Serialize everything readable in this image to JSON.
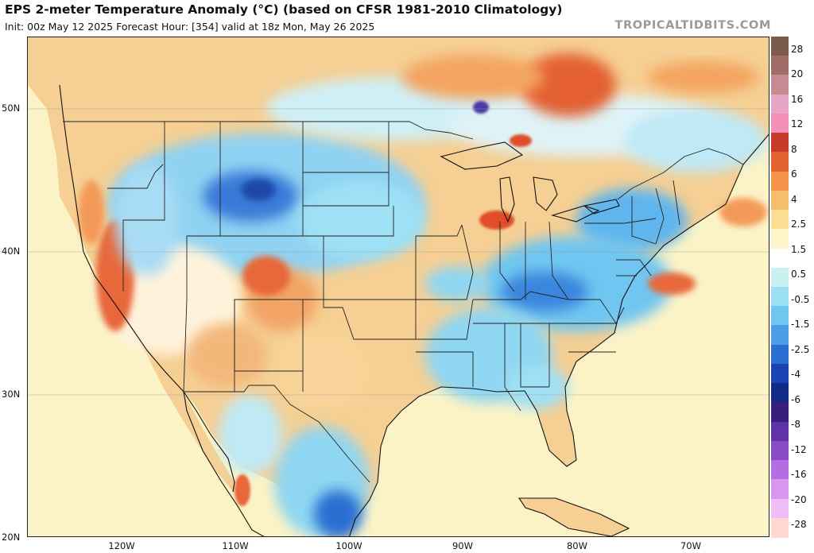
{
  "header": {
    "title": "EPS 2-meter Temperature Anomaly (°C) (based on CFSR 1981-2010 Climatology)",
    "subtitle": "Init: 00z May 12 2025   Forecast Hour: [354]   valid at 18z Mon, May 26 2025",
    "brand": "TROPICALTIDBITS.COM"
  },
  "map": {
    "lat_ticks": [
      "50N",
      "40N",
      "30N",
      "20N"
    ],
    "lon_ticks": [
      "120W",
      "110W",
      "100W",
      "90W",
      "80W",
      "70W"
    ],
    "ocean_color": "#fbf3c6",
    "boundary_color": "#222222"
  },
  "colorbar": {
    "labels": [
      "28",
      "20",
      "16",
      "12",
      "8",
      "6",
      "4",
      "2.5",
      "1.5",
      "0.5",
      "-0.5",
      "-1.5",
      "-2.5",
      "-4",
      "-6",
      "-8",
      "-12",
      "-16",
      "-20",
      "-28"
    ],
    "colors": [
      "#7a5a4a",
      "#a06e66",
      "#c78a92",
      "#e8a6c5",
      "#f390b8",
      "#c73a2a",
      "#e3622e",
      "#f4944a",
      "#f6bd6a",
      "#fbdf92",
      "#fff6cc",
      "#ffffff",
      "#c9f1f2",
      "#9ae0f2",
      "#6fc6f0",
      "#4a9ee6",
      "#2a6ed2",
      "#1a44b2",
      "#132a86",
      "#3a1e7e",
      "#5e33a6",
      "#8a4cc6",
      "#b46ee0",
      "#d996ee",
      "#f0bdf6",
      "#ffd9cf"
    ]
  }
}
